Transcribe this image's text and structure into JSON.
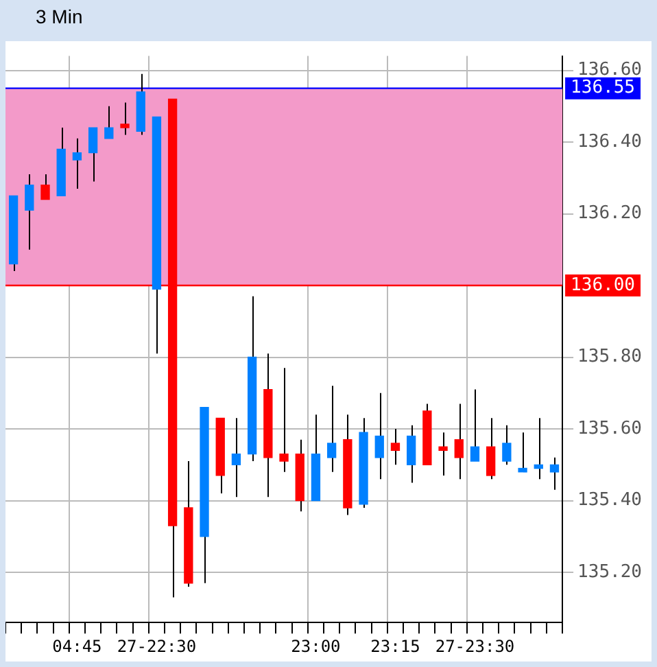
{
  "chart_data": {
    "type": "candlestick",
    "title": "3 Min",
    "categories": [
      null,
      null,
      null,
      null,
      "04:45",
      null,
      null,
      null,
      null,
      "27-22:30",
      null,
      null,
      null,
      null,
      null,
      null,
      null,
      null,
      null,
      "23:00",
      null,
      null,
      null,
      null,
      "23:15",
      null,
      null,
      null,
      null,
      "27-23:30",
      null,
      null,
      null,
      null,
      null
    ],
    "ohlc": [
      [
        136.06,
        136.25,
        136.04,
        136.25
      ],
      [
        136.21,
        136.31,
        136.1,
        136.28
      ],
      [
        136.28,
        136.31,
        136.24,
        136.24
      ],
      [
        136.25,
        136.44,
        136.25,
        136.38
      ],
      [
        136.35,
        136.41,
        136.27,
        136.37
      ],
      [
        136.37,
        136.44,
        136.29,
        136.44
      ],
      [
        136.41,
        136.5,
        136.41,
        136.44
      ],
      [
        136.45,
        136.51,
        136.42,
        136.44
      ],
      [
        136.43,
        136.59,
        136.42,
        136.54
      ],
      [
        135.99,
        136.47,
        135.81,
        136.47
      ],
      [
        136.52,
        136.52,
        135.13,
        135.33
      ],
      [
        135.38,
        135.51,
        135.16,
        135.17
      ],
      [
        135.3,
        135.66,
        135.17,
        135.66
      ],
      [
        135.63,
        135.63,
        135.42,
        135.47
      ],
      [
        135.5,
        135.63,
        135.41,
        135.53
      ],
      [
        135.53,
        135.97,
        135.51,
        135.8
      ],
      [
        135.71,
        135.81,
        135.41,
        135.52
      ],
      [
        135.53,
        135.77,
        135.48,
        135.51
      ],
      [
        135.53,
        135.57,
        135.37,
        135.4
      ],
      [
        135.4,
        135.64,
        135.4,
        135.53
      ],
      [
        135.52,
        135.72,
        135.48,
        135.56
      ],
      [
        135.57,
        135.64,
        135.36,
        135.38
      ],
      [
        135.39,
        135.63,
        135.38,
        135.59
      ],
      [
        135.52,
        135.7,
        135.46,
        135.58
      ],
      [
        135.56,
        135.6,
        135.5,
        135.54
      ],
      [
        135.5,
        135.61,
        135.45,
        135.58
      ],
      [
        135.65,
        135.67,
        135.5,
        135.5
      ],
      [
        135.55,
        135.59,
        135.47,
        135.54
      ],
      [
        135.57,
        135.67,
        135.46,
        135.52
      ],
      [
        135.51,
        135.71,
        135.51,
        135.55
      ],
      [
        135.55,
        135.63,
        135.46,
        135.47
      ],
      [
        135.51,
        135.61,
        135.5,
        135.56
      ],
      [
        135.48,
        135.59,
        135.48,
        135.49
      ],
      [
        135.49,
        135.63,
        135.46,
        135.5
      ],
      [
        135.48,
        135.52,
        135.43,
        135.5
      ]
    ],
    "colors": [
      "#0080ff",
      "#0080ff",
      "#ff0000",
      "#0080ff",
      "#0080ff",
      "#0080ff",
      "#0080ff",
      "#ff0000",
      "#0080ff",
      "#0080ff",
      "#ff0000",
      "#ff0000",
      "#0080ff",
      "#ff0000",
      "#0080ff",
      "#0080ff",
      "#ff0000",
      "#ff0000",
      "#ff0000",
      "#0080ff",
      "#0080ff",
      "#ff0000",
      "#0080ff",
      "#0080ff",
      "#ff0000",
      "#0080ff",
      "#ff0000",
      "#ff0000",
      "#ff0000",
      "#0080ff",
      "#ff0000",
      "#0080ff",
      "#0080ff",
      "#0080ff",
      "#0080ff"
    ],
    "ylim": [
      135.06,
      136.64
    ],
    "yticks": [
      {
        "value": 135.2,
        "label": "135.20"
      },
      {
        "value": 135.4,
        "label": "135.40"
      },
      {
        "value": 135.6,
        "label": "135.60"
      },
      {
        "value": 135.8,
        "label": "135.80"
      },
      {
        "value": 136.2,
        "label": "136.20"
      },
      {
        "value": 136.4,
        "label": "136.40"
      },
      {
        "value": 136.6,
        "label": "136.60"
      }
    ],
    "bands": [
      {
        "axis": "y",
        "from": 136.0,
        "to": 136.55,
        "color": "#f39ac9"
      }
    ],
    "ref_lines": [
      {
        "axis": "y",
        "value": 136.55,
        "label": "136.55",
        "color": "#0000ff"
      },
      {
        "axis": "y",
        "value": 136.0,
        "label": "136.00",
        "color": "#ff0000"
      }
    ],
    "grid": true,
    "legend": false
  }
}
